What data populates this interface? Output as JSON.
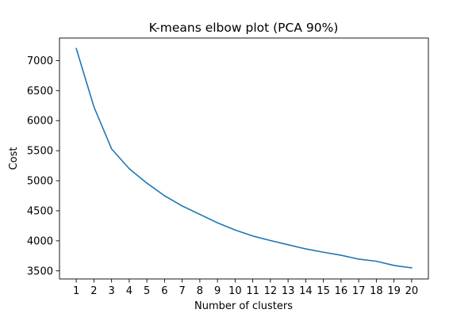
{
  "chart_data": {
    "type": "line",
    "title": "K-means elbow plot (PCA 90%)",
    "xlabel": "Number of clusters",
    "ylabel": "Cost",
    "x": [
      1,
      2,
      3,
      4,
      5,
      6,
      7,
      8,
      9,
      10,
      11,
      12,
      13,
      14,
      15,
      16,
      17,
      18,
      19,
      20
    ],
    "xticks": [
      "1",
      "2",
      "3",
      "4",
      "5",
      "6",
      "7",
      "8",
      "9",
      "10",
      "11",
      "12",
      "13",
      "14",
      "15",
      "16",
      "17",
      "18",
      "19",
      "20"
    ],
    "yticks": [
      3500,
      4000,
      4500,
      5000,
      5500,
      6000,
      6500,
      7000
    ],
    "ytick_labels": [
      "3500",
      "4000",
      "4500",
      "5000",
      "5500",
      "6000",
      "6500",
      "7000"
    ],
    "xlim": [
      0.05,
      20.95
    ],
    "ylim": [
      3365,
      7375
    ],
    "grid": false,
    "series": [
      {
        "name": "Cost",
        "color": "#1f77b4",
        "values": [
          7200,
          6230,
          5530,
          5200,
          4960,
          4750,
          4580,
          4440,
          4300,
          4180,
          4080,
          4005,
          3935,
          3865,
          3810,
          3760,
          3695,
          3660,
          3590,
          3550
        ]
      }
    ]
  }
}
